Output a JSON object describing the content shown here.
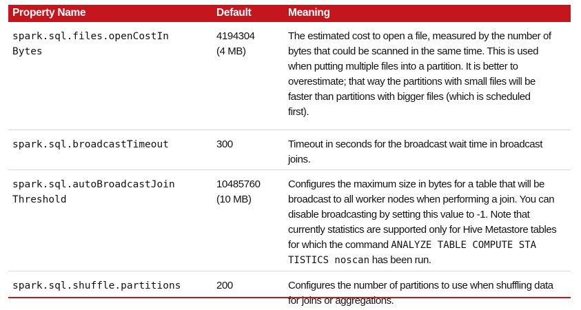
{
  "header": {
    "property_name": "Property Name",
    "default": "Default",
    "meaning": "Meaning"
  },
  "rows": [
    {
      "property": [
        "spark.sql.files.openCostIn",
        "Bytes"
      ],
      "default": [
        "4194304",
        "(4 MB)"
      ],
      "meaning": [
        "The estimated cost to open a file, measured by the number of",
        "bytes that could be scanned in the same time. This is used",
        "when putting multiple files into a partition. It is better to",
        "overestimate; that way the partitions with small files will be",
        "faster than partitions with bigger files (which is scheduled",
        "first)."
      ]
    },
    {
      "property": [
        "spark.sql.broadcastTimeout"
      ],
      "default": [
        "300"
      ],
      "meaning": [
        "Timeout in seconds for the broadcast wait time in broadcast",
        "joins."
      ]
    },
    {
      "property": [
        "spark.sql.autoBroadcastJoin",
        "Threshold"
      ],
      "default": [
        "10485760",
        "(10 MB)"
      ],
      "meaning": [
        "Configures the maximum size in bytes for a table that will be",
        "broadcast to all worker nodes when performing a join. You can",
        "disable broadcasting by setting this value to -1. Note that",
        "currently statistics are supported only for Hive Metastore tables",
        "for which the command "
      ],
      "meaning_code_1": "ANALYZE TABLE COMPUTE STA",
      "meaning_code_2": "TISTICS noscan",
      "meaning_tail": " has been run."
    },
    {
      "property": [
        "spark.sql.shuffle.partitions"
      ],
      "default": [
        "200"
      ],
      "meaning": [
        "Configures the number of partitions to use when shuffling data",
        "for joins or aggregations."
      ]
    }
  ]
}
